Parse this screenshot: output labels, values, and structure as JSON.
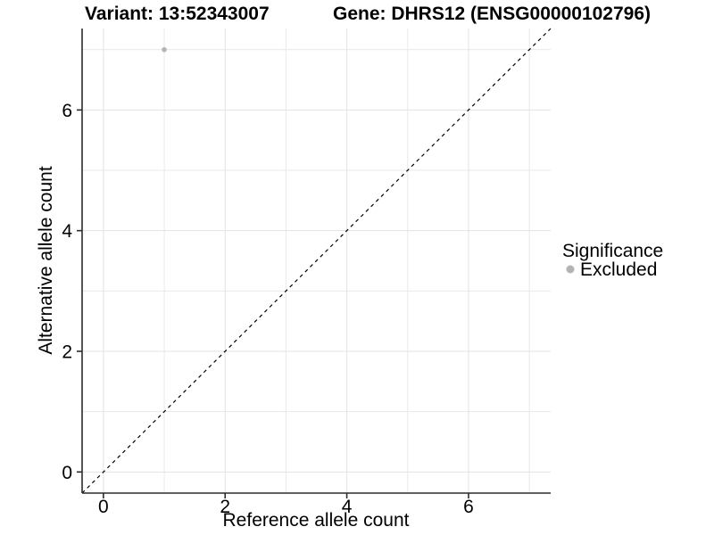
{
  "header": {
    "variant_title": "Variant: 13:52343007",
    "gene_title": "Gene: DHRS12 (ENSG00000102796)"
  },
  "legend": {
    "title": "Significance",
    "items": [
      {
        "label": "Excluded",
        "marker_color": "#b3b3b3"
      }
    ]
  },
  "chart_data": {
    "type": "scatter",
    "titles": [
      "Variant: 13:52343007",
      "Gene: DHRS12 (ENSG00000102796)"
    ],
    "xlabel": "Reference allele count",
    "ylabel": "Alternative allele count",
    "xlim": [
      -0.35,
      7.35
    ],
    "ylim": [
      -0.35,
      7.35
    ],
    "x_major_ticks": [
      0,
      2,
      4,
      6
    ],
    "y_major_ticks": [
      0,
      2,
      4,
      6
    ],
    "x_minor_ticks": [
      1,
      3,
      5,
      7
    ],
    "y_minor_ticks": [
      1,
      3,
      5,
      7
    ],
    "grid": true,
    "legend_position": "right",
    "series": [
      {
        "name": "Excluded",
        "color": "#b3b3b3",
        "points": [
          [
            1,
            7
          ]
        ]
      }
    ],
    "reference_line": {
      "type": "abline",
      "slope": 1,
      "intercept": 0,
      "style": "dashed",
      "color": "#000000"
    }
  },
  "colors": {
    "background": "#ffffff",
    "grid_major": "#e3e3e3",
    "grid_minor": "#e9e9e9",
    "axis_line": "#2b2b2b",
    "text": "#000000",
    "point": "#b3b3b3",
    "reference_line": "#000000"
  }
}
